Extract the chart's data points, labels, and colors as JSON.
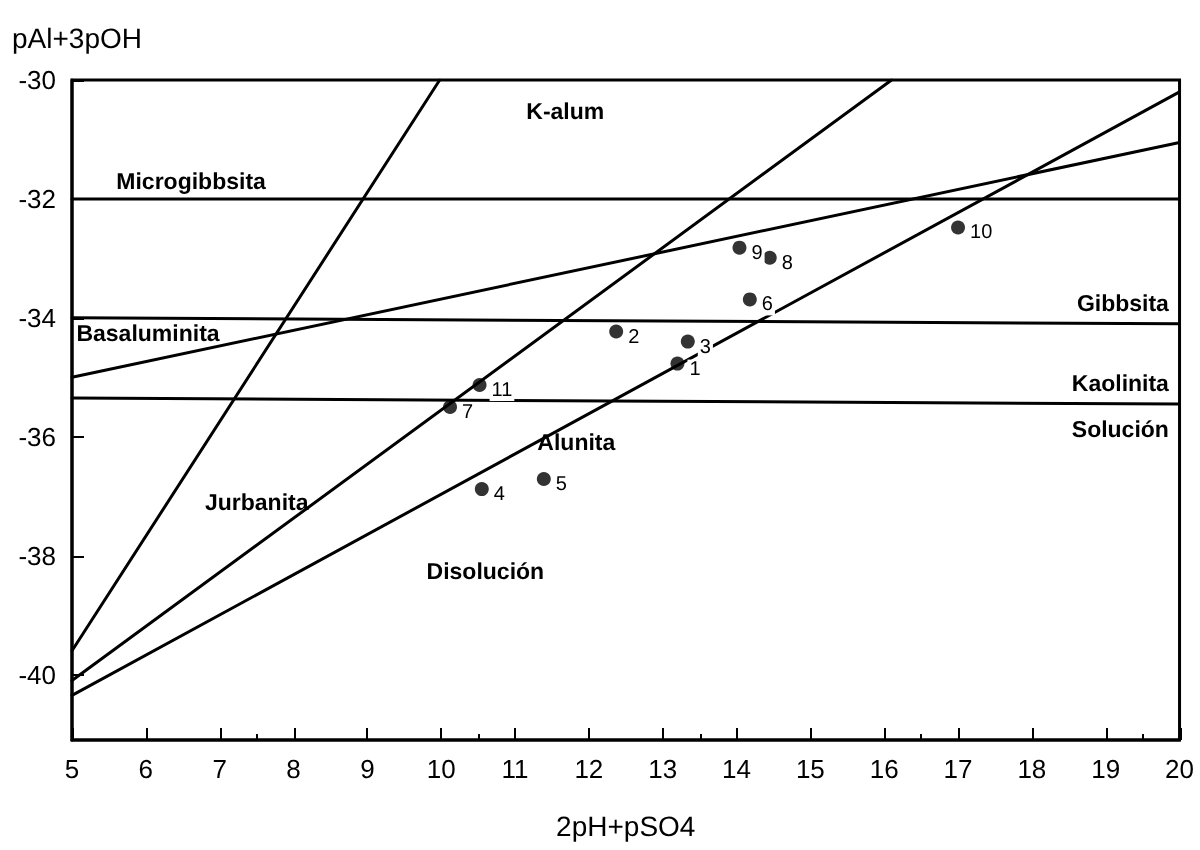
{
  "chart_data": {
    "type": "line",
    "xlabel": "2pH+pSO4",
    "ylabel": "pAl+3pOH",
    "xlim": [
      5,
      20
    ],
    "xticks": [
      5,
      6,
      7,
      8,
      9,
      10,
      11,
      12,
      13,
      14,
      15,
      16,
      17,
      18,
      19,
      20
    ],
    "ylim": [
      -41.1,
      -30
    ],
    "yticks": [
      -30,
      -32,
      -34,
      -36,
      -38,
      -40
    ],
    "line_style": "solid",
    "series": [
      {
        "color": "#000000",
        "x": [
          5,
          20
        ],
        "values": [
          -32,
          -32
        ]
      },
      {
        "color": "#000000",
        "x": [
          5,
          20
        ],
        "values": [
          -34,
          -34.1
        ]
      },
      {
        "color": "#000000",
        "x": [
          5,
          20
        ],
        "values": [
          -35.35,
          -35.45
        ]
      },
      {
        "color": "#000000",
        "x": [
          5,
          20
        ],
        "values": [
          -35,
          -31.05
        ]
      },
      {
        "color": "#000000",
        "x": [
          5,
          9.98
        ],
        "values": [
          -39.6,
          -30
        ]
      },
      {
        "color": "#000000",
        "x": [
          5,
          16.1
        ],
        "values": [
          -40.1,
          -30
        ]
      },
      {
        "color": "#000000",
        "x": [
          5,
          20
        ],
        "values": [
          -40.35,
          -30.2
        ]
      },
      {
        "type": "scatter",
        "marker": "circle",
        "color": "#000000",
        "x": [
          13.2,
          12.37,
          13.34,
          10.55,
          11.39,
          14.18,
          10.12,
          14.45,
          14.04,
          17.0,
          10.52
        ],
        "values": [
          -34.77,
          -34.23,
          -34.4,
          -36.88,
          -36.71,
          -33.69,
          -35.5,
          -32.99,
          -32.82,
          -32.48,
          -35.13
        ]
      }
    ],
    "annotations": [
      "K-alum",
      "Microgibbsita",
      "Basaluminita",
      "Gibbsita",
      "Kaolinita",
      "Solución",
      "Alunita",
      "Jurbanita",
      "Disolución",
      {
        "text": "1",
        "x": 13.2,
        "y": -34.77
      },
      {
        "text": "2",
        "x": 12.37,
        "y": -34.23
      },
      {
        "text": "3",
        "x": 13.34,
        "y": -34.4
      },
      {
        "text": "4",
        "x": 10.55,
        "y": -36.88
      },
      {
        "text": "5",
        "x": 11.39,
        "y": -36.71
      },
      {
        "text": "6",
        "x": 14.18,
        "y": -33.69
      },
      {
        "text": "7",
        "x": 10.12,
        "y": -35.5
      },
      {
        "text": "8",
        "x": 14.45,
        "y": -32.99
      },
      {
        "text": "9",
        "x": 14.04,
        "y": -32.82
      },
      {
        "text": "10",
        "x": 17.0,
        "y": -32.48
      },
      {
        "text": "11",
        "x": 10.52,
        "y": -35.13
      }
    ]
  }
}
